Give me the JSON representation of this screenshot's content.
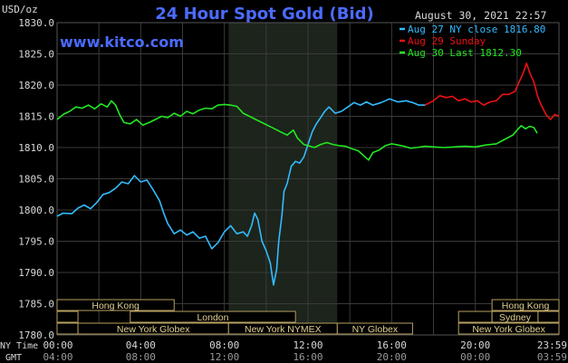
{
  "header": {
    "title": "24 Hour Spot Gold (Bid)",
    "timestamp": "August 30, 2021 22:57",
    "watermark": "www.kitco.com",
    "unit_label": "USD/oz"
  },
  "colors": {
    "background": "#000000",
    "grid": "#3a3a3a",
    "shade": "#1c241c",
    "title": "#4b6bff",
    "watermark": "#4b6bff",
    "axis_text": "#d8d8d8",
    "blue_series": "#33bbff",
    "red_series": "#ee1111",
    "green_series": "#22e822",
    "session_box": "#b8a060",
    "session_text": "#e0d090"
  },
  "chart_data": {
    "type": "line",
    "title": "24 Hour Spot Gold (Bid)",
    "xlabel": "",
    "ylabel": "USD/oz",
    "ylim": [
      1780,
      1830
    ],
    "xlim": [
      0,
      24
    ],
    "y_ticks": [
      "1830.0",
      "1825.0",
      "1820.0",
      "1815.0",
      "1810.0",
      "1805.0",
      "1800.0",
      "1795.0",
      "1790.0",
      "1785.0",
      "1780.0"
    ],
    "x_ticks_ny": [
      "00:00",
      "04:00",
      "08:00",
      "12:00",
      "16:00",
      "20:00",
      "23:59"
    ],
    "x_ticks_gmt": [
      "04:00",
      "08:00",
      "12:00",
      "16:00",
      "20:00",
      "00:00",
      "03:59"
    ],
    "x_axis_row_labels": [
      "NY Time",
      "GMT"
    ],
    "grid": true,
    "legend_position": "top-right",
    "shaded_interval_hours": [
      8.2,
      13.4
    ],
    "series": [
      {
        "name": "Aug 27 NY close 1816.80",
        "color": "#33bbff",
        "points": [
          [
            0,
            1799.0
          ],
          [
            0.3,
            1799.5
          ],
          [
            0.7,
            1799.4
          ],
          [
            1.0,
            1800.3
          ],
          [
            1.3,
            1800.8
          ],
          [
            1.6,
            1800.2
          ],
          [
            1.9,
            1801.2
          ],
          [
            2.2,
            1802.5
          ],
          [
            2.5,
            1802.8
          ],
          [
            2.8,
            1803.5
          ],
          [
            3.1,
            1804.5
          ],
          [
            3.4,
            1804.2
          ],
          [
            3.7,
            1805.5
          ],
          [
            4.0,
            1804.5
          ],
          [
            4.3,
            1804.8
          ],
          [
            4.6,
            1803.2
          ],
          [
            4.9,
            1801.5
          ],
          [
            5.1,
            1799.5
          ],
          [
            5.3,
            1797.8
          ],
          [
            5.6,
            1796.2
          ],
          [
            5.9,
            1796.8
          ],
          [
            6.2,
            1796.0
          ],
          [
            6.5,
            1796.5
          ],
          [
            6.8,
            1795.5
          ],
          [
            7.1,
            1795.8
          ],
          [
            7.4,
            1793.8
          ],
          [
            7.7,
            1794.8
          ],
          [
            8.0,
            1796.5
          ],
          [
            8.3,
            1797.5
          ],
          [
            8.6,
            1796.2
          ],
          [
            8.9,
            1796.5
          ],
          [
            9.1,
            1795.8
          ],
          [
            9.3,
            1797.5
          ],
          [
            9.45,
            1799.5
          ],
          [
            9.6,
            1798.5
          ],
          [
            9.8,
            1795.0
          ],
          [
            10.0,
            1793.5
          ],
          [
            10.2,
            1791.5
          ],
          [
            10.35,
            1788.0
          ],
          [
            10.5,
            1790.5
          ],
          [
            10.6,
            1795.0
          ],
          [
            10.75,
            1799.0
          ],
          [
            10.85,
            1803.0
          ],
          [
            11.0,
            1804.2
          ],
          [
            11.2,
            1807.0
          ],
          [
            11.4,
            1807.8
          ],
          [
            11.6,
            1807.5
          ],
          [
            11.8,
            1808.5
          ],
          [
            12.0,
            1810.5
          ],
          [
            12.2,
            1812.5
          ],
          [
            12.4,
            1813.8
          ],
          [
            12.6,
            1814.8
          ],
          [
            12.8,
            1815.8
          ],
          [
            13.0,
            1816.5
          ],
          [
            13.3,
            1815.5
          ],
          [
            13.6,
            1815.8
          ],
          [
            13.9,
            1816.5
          ],
          [
            14.2,
            1817.2
          ],
          [
            14.5,
            1816.8
          ],
          [
            14.8,
            1817.3
          ],
          [
            15.1,
            1816.8
          ],
          [
            15.5,
            1817.2
          ],
          [
            15.9,
            1817.8
          ],
          [
            16.3,
            1817.3
          ],
          [
            16.7,
            1817.5
          ],
          [
            17.0,
            1817.2
          ],
          [
            17.3,
            1816.8
          ],
          [
            17.6,
            1816.8
          ]
        ]
      },
      {
        "name": "Aug 29 Sunday",
        "color": "#ee1111",
        "points": [
          [
            17.6,
            1816.8
          ],
          [
            18.0,
            1817.5
          ],
          [
            18.3,
            1818.3
          ],
          [
            18.6,
            1818.0
          ],
          [
            18.9,
            1818.2
          ],
          [
            19.2,
            1817.5
          ],
          [
            19.5,
            1817.8
          ],
          [
            19.8,
            1817.3
          ],
          [
            20.1,
            1817.5
          ],
          [
            20.4,
            1816.8
          ],
          [
            20.7,
            1817.3
          ],
          [
            21.0,
            1817.5
          ],
          [
            21.3,
            1818.5
          ],
          [
            21.6,
            1818.5
          ],
          [
            21.9,
            1819.0
          ],
          [
            22.1,
            1820.5
          ],
          [
            22.3,
            1822.0
          ],
          [
            22.45,
            1823.5
          ],
          [
            22.6,
            1822.0
          ],
          [
            22.8,
            1820.5
          ],
          [
            23.0,
            1818.0
          ],
          [
            23.2,
            1816.5
          ],
          [
            23.4,
            1815.2
          ],
          [
            23.6,
            1814.5
          ],
          [
            23.8,
            1815.3
          ],
          [
            24.0,
            1815.0
          ]
        ]
      },
      {
        "name": "Aug 30 Last 1812.30",
        "color": "#22e822",
        "points": [
          [
            0,
            1814.5
          ],
          [
            0.3,
            1815.3
          ],
          [
            0.6,
            1815.8
          ],
          [
            0.9,
            1816.5
          ],
          [
            1.2,
            1816.3
          ],
          [
            1.5,
            1816.8
          ],
          [
            1.8,
            1816.2
          ],
          [
            2.1,
            1817.0
          ],
          [
            2.4,
            1816.5
          ],
          [
            2.6,
            1817.5
          ],
          [
            2.8,
            1816.8
          ],
          [
            3.0,
            1815.2
          ],
          [
            3.2,
            1814.0
          ],
          [
            3.5,
            1813.8
          ],
          [
            3.8,
            1814.5
          ],
          [
            4.1,
            1813.6
          ],
          [
            4.4,
            1814.0
          ],
          [
            4.7,
            1814.5
          ],
          [
            5.0,
            1815.0
          ],
          [
            5.3,
            1814.8
          ],
          [
            5.6,
            1815.5
          ],
          [
            5.9,
            1815.0
          ],
          [
            6.2,
            1815.8
          ],
          [
            6.5,
            1815.4
          ],
          [
            6.8,
            1816.0
          ],
          [
            7.1,
            1816.3
          ],
          [
            7.4,
            1816.2
          ],
          [
            7.7,
            1816.8
          ],
          [
            8.0,
            1816.9
          ],
          [
            8.3,
            1816.8
          ],
          [
            8.6,
            1816.6
          ],
          [
            8.9,
            1815.5
          ],
          [
            9.2,
            1815.0
          ],
          [
            9.5,
            1814.5
          ],
          [
            9.8,
            1814.0
          ],
          [
            10.1,
            1813.5
          ],
          [
            10.4,
            1813.0
          ],
          [
            10.7,
            1812.5
          ],
          [
            11.0,
            1812.0
          ],
          [
            11.3,
            1812.8
          ],
          [
            11.5,
            1811.5
          ],
          [
            11.8,
            1810.5
          ],
          [
            12.0,
            1810.3
          ],
          [
            12.3,
            1810.0
          ],
          [
            12.6,
            1810.5
          ],
          [
            12.9,
            1810.8
          ],
          [
            13.2,
            1810.5
          ],
          [
            13.5,
            1810.3
          ],
          [
            13.8,
            1810.2
          ],
          [
            14.1,
            1809.8
          ],
          [
            14.4,
            1809.5
          ],
          [
            14.7,
            1808.6
          ],
          [
            14.9,
            1808.0
          ],
          [
            15.1,
            1809.2
          ],
          [
            15.4,
            1809.6
          ],
          [
            15.7,
            1810.3
          ],
          [
            16.0,
            1810.6
          ],
          [
            16.3,
            1810.4
          ],
          [
            16.6,
            1810.2
          ],
          [
            16.9,
            1809.9
          ],
          [
            17.2,
            1810.0
          ],
          [
            17.6,
            1810.2
          ],
          [
            18.0,
            1810.1
          ],
          [
            18.5,
            1810.0
          ],
          [
            19.0,
            1810.1
          ],
          [
            19.5,
            1810.2
          ],
          [
            20.0,
            1810.1
          ],
          [
            20.5,
            1810.4
          ],
          [
            21.0,
            1810.6
          ],
          [
            21.4,
            1811.3
          ],
          [
            21.8,
            1812.0
          ],
          [
            22.0,
            1812.8
          ],
          [
            22.2,
            1813.5
          ],
          [
            22.4,
            1813.0
          ],
          [
            22.6,
            1813.4
          ],
          [
            22.8,
            1813.2
          ],
          [
            22.96,
            1812.3
          ]
        ]
      }
    ],
    "sessions_left": [
      {
        "label": "Hong Kong",
        "start": 0,
        "end": 5.6,
        "row": 0
      },
      {
        "label": "",
        "start": 0,
        "end": 1.0,
        "row": 1
      },
      {
        "label": "London",
        "start": 3.5,
        "end": 11.4,
        "row": 1
      },
      {
        "label": "",
        "start": 0,
        "end": 1.0,
        "row": 2
      },
      {
        "label": "New York Globex",
        "start": 1.0,
        "end": 8.2,
        "row": 2
      },
      {
        "label": "New York NYMEX",
        "start": 8.2,
        "end": 13.4,
        "row": 2
      },
      {
        "label": "NY Globex",
        "start": 13.4,
        "end": 17.0,
        "row": 2
      }
    ],
    "sessions_right": [
      {
        "label": "Hong Kong",
        "start": 20.8,
        "end": 24.0,
        "row": 0
      },
      {
        "label": "",
        "start": 19.2,
        "end": 20.8,
        "row": 1
      },
      {
        "label": "Sydney",
        "start": 20.8,
        "end": 23.0,
        "row": 1
      },
      {
        "label": "",
        "start": 23.0,
        "end": 24.0,
        "row": 1
      },
      {
        "label": "New York Globex",
        "start": 19.2,
        "end": 24.0,
        "row": 2
      }
    ]
  }
}
